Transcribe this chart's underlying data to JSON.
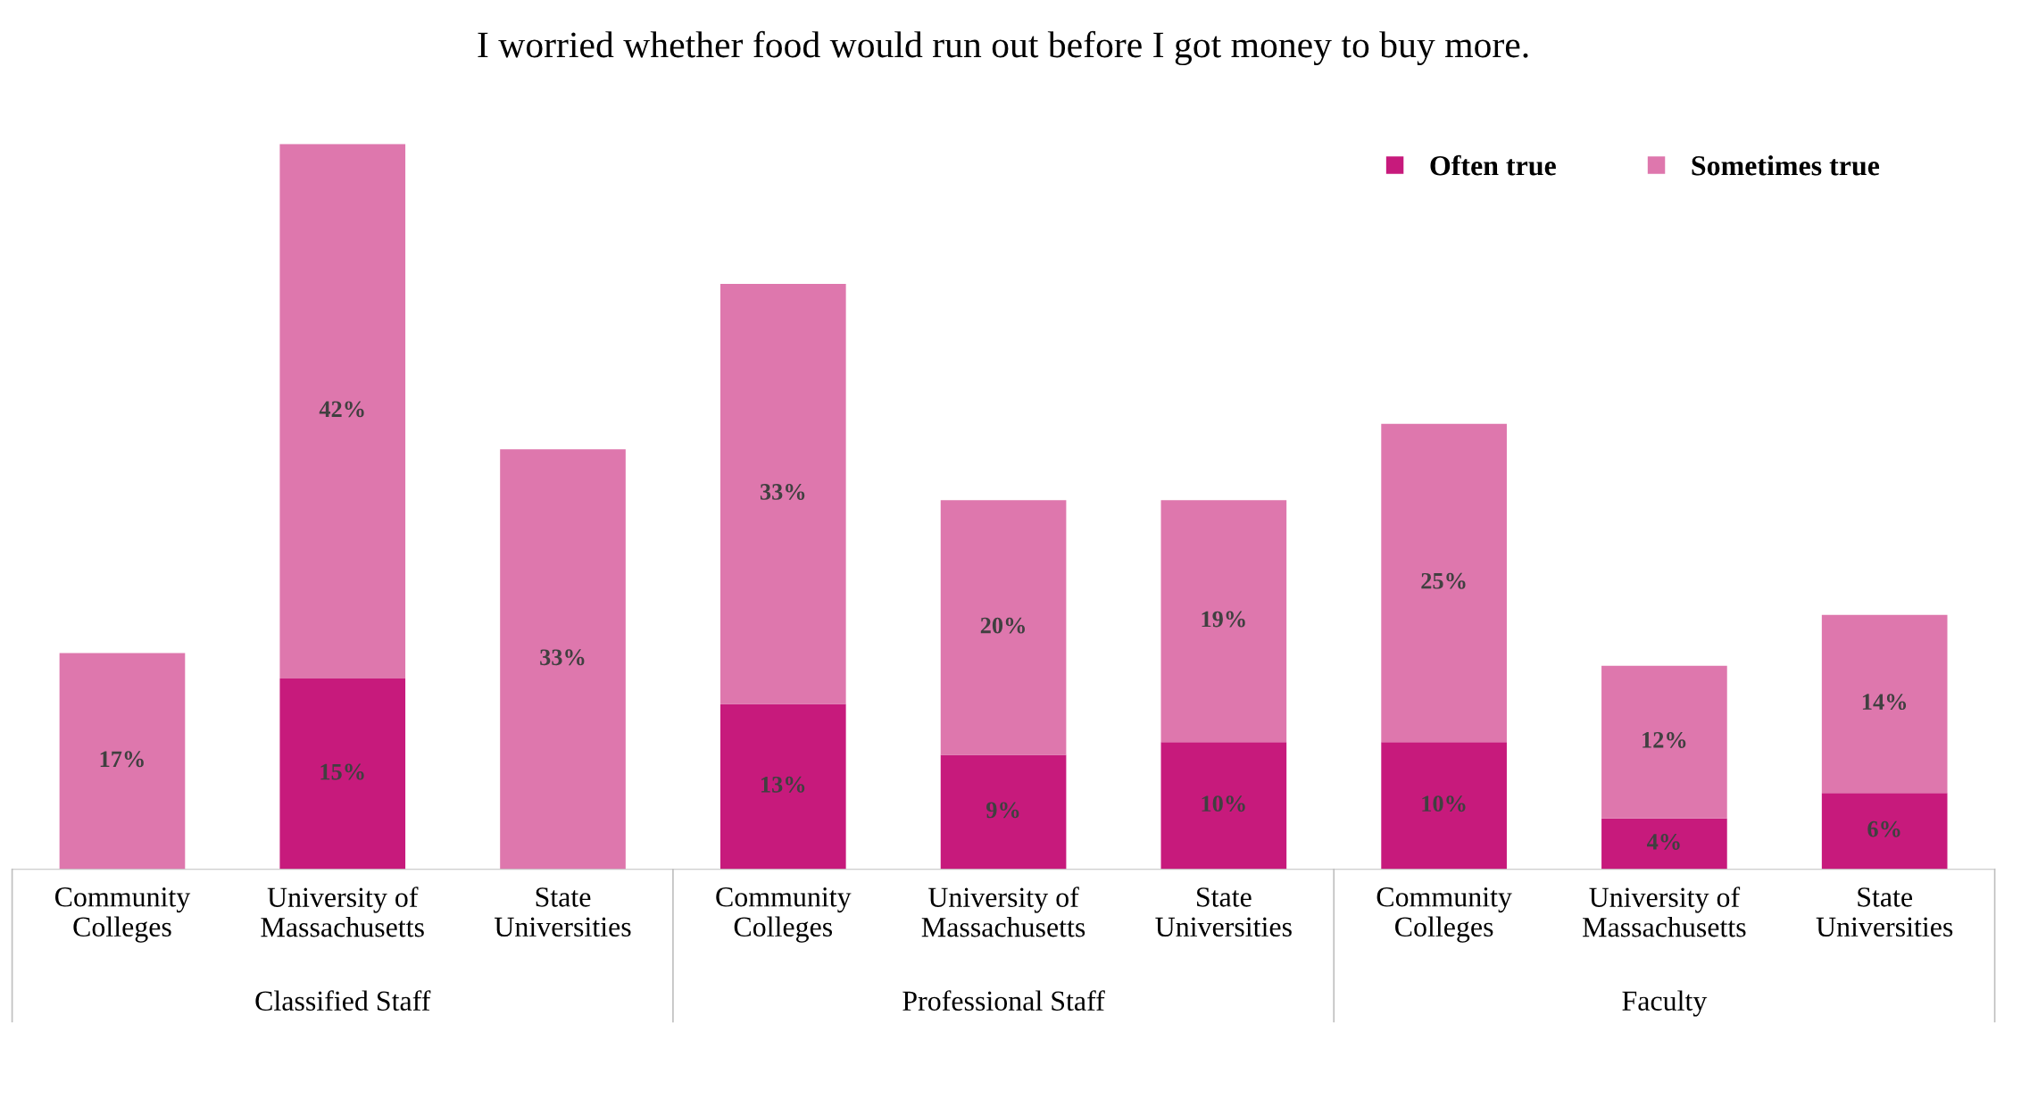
{
  "chart_data": {
    "type": "bar",
    "stacked": true,
    "title": "I worried whether food would run out before I got money to buy more.",
    "categories": [
      "Community\nColleges",
      "University of\nMassachusetts",
      "State\nUniversities",
      "Community\nColleges",
      "University of\nMassachusetts",
      "State\nUniversities",
      "Community\nColleges",
      "University of\nMassachusetts",
      "State\nUniversities"
    ],
    "series": [
      {
        "name": "Often true",
        "color": "#c71a7c",
        "values": [
          null,
          15,
          null,
          13,
          9,
          10,
          10,
          4,
          6
        ],
        "value_labels": [
          null,
          "15%",
          null,
          "13%",
          "9%",
          "10%",
          "10%",
          "4%",
          "6%"
        ]
      },
      {
        "name": "Sometimes true",
        "color": "#de77ad",
        "values": [
          17,
          42,
          33,
          33,
          20,
          19,
          25,
          12,
          14
        ],
        "value_labels": [
          "17%",
          "42%",
          "33%",
          "33%",
          "20%",
          "19%",
          "25%",
          "12%",
          "14%"
        ]
      }
    ],
    "annotations": [
      "Classified Staff",
      "Professional Staff",
      "Faculty"
    ],
    "legend": "top right",
    "grid": false
  }
}
